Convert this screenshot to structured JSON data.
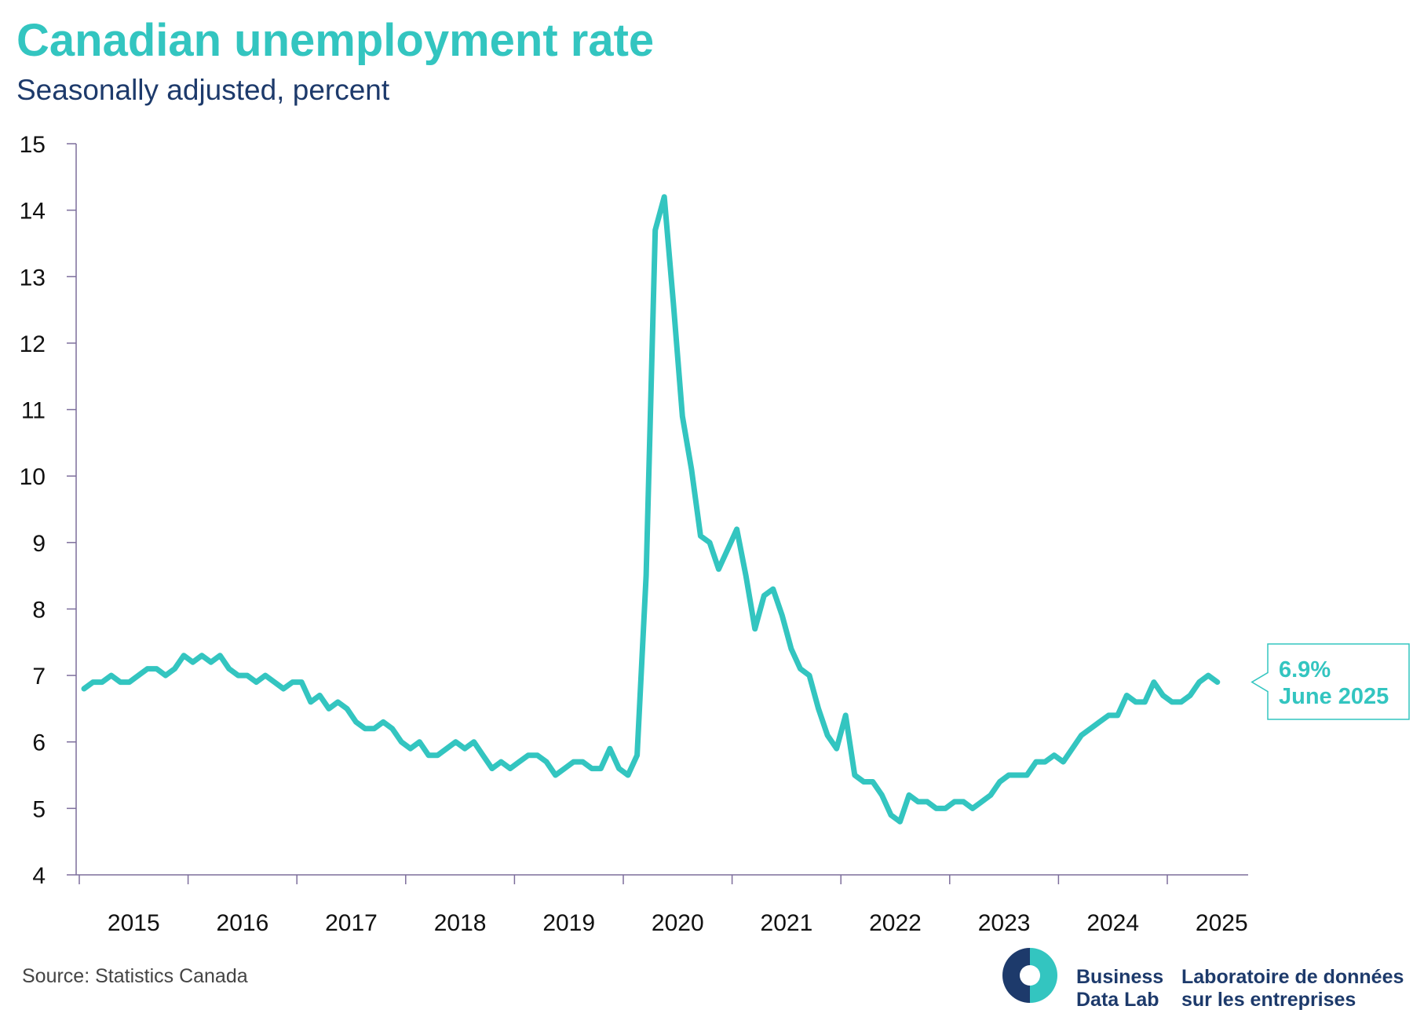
{
  "title": "Canadian unemployment rate",
  "subtitle": "Seasonally adjusted, percent",
  "source": "Source: Statistics Canada",
  "logo": {
    "en_line1": "Business",
    "en_line2": "Data Lab",
    "fr_line1": "Laboratoire de données",
    "fr_line2": "sur les entreprises"
  },
  "colors": {
    "accent": "#33c5c0",
    "navy": "#1d3a6b",
    "axis": "#7d6e9c"
  },
  "chart_data": {
    "type": "line",
    "title": "Canadian unemployment rate",
    "subtitle": "Seasonally adjusted, percent",
    "xlabel": "",
    "ylabel": "",
    "ylim": [
      4,
      15
    ],
    "yticks": [
      "4",
      "5",
      "6",
      "7",
      "8",
      "9",
      "10",
      "11",
      "12",
      "13",
      "14",
      "15"
    ],
    "xtick_labels": [
      "2015",
      "2016",
      "2017",
      "2018",
      "2019",
      "2020",
      "2021",
      "2022",
      "2023",
      "2024",
      "2025"
    ],
    "x_start": "2015-01",
    "x_end": "2025-06",
    "grid": false,
    "legend": "none",
    "series": [
      {
        "values": [
          6.8,
          6.9,
          6.9,
          7.0,
          6.9,
          6.9,
          7.0,
          7.1,
          7.1,
          7.0,
          7.1,
          7.3,
          7.2,
          7.3,
          7.2,
          7.3,
          7.1,
          7.0,
          7.0,
          6.9,
          7.0,
          6.9,
          6.8,
          6.9,
          6.9,
          6.6,
          6.7,
          6.5,
          6.6,
          6.5,
          6.3,
          6.2,
          6.2,
          6.3,
          6.2,
          6.0,
          5.9,
          6.0,
          5.8,
          5.8,
          5.9,
          6.0,
          5.9,
          6.0,
          5.8,
          5.6,
          5.7,
          5.6,
          5.7,
          5.8,
          5.8,
          5.7,
          5.5,
          5.6,
          5.7,
          5.7,
          5.6,
          5.6,
          5.9,
          5.6,
          5.5,
          5.8,
          8.5,
          13.7,
          14.2,
          12.6,
          10.9,
          10.1,
          9.1,
          9.0,
          8.6,
          8.9,
          9.2,
          8.5,
          7.7,
          8.2,
          8.3,
          7.9,
          7.4,
          7.1,
          7.0,
          6.5,
          6.1,
          5.9,
          6.4,
          5.5,
          5.4,
          5.4,
          5.2,
          4.9,
          4.8,
          5.2,
          5.1,
          5.1,
          5.0,
          5.0,
          5.1,
          5.1,
          5.0,
          5.1,
          5.2,
          5.4,
          5.5,
          5.5,
          5.5,
          5.7,
          5.7,
          5.8,
          5.7,
          5.9,
          6.1,
          6.2,
          6.3,
          6.4,
          6.4,
          6.7,
          6.6,
          6.6,
          6.9,
          6.7,
          6.6,
          6.6,
          6.7,
          6.9,
          7.0,
          6.9
        ]
      }
    ],
    "annotation": {
      "value_label": "6.9%",
      "date_label": "June 2025"
    }
  }
}
